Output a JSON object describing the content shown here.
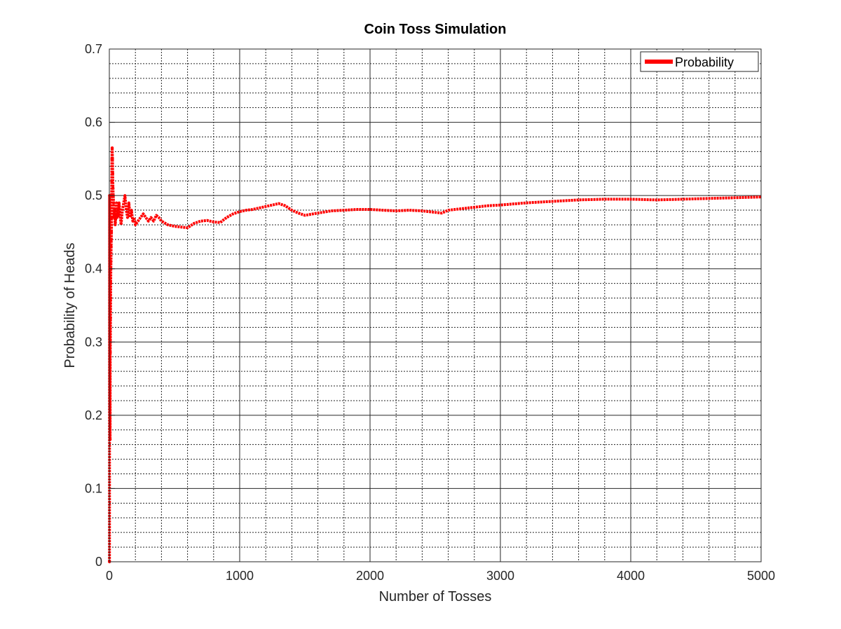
{
  "chart_data": {
    "type": "line",
    "title": "Coin Toss Simulation",
    "xlabel": "Number of Tosses",
    "ylabel": "Probability of Heads",
    "xlim": [
      0,
      5000
    ],
    "ylim": [
      0,
      0.7
    ],
    "x_ticks": [
      0,
      1000,
      2000,
      3000,
      4000,
      5000
    ],
    "x_tick_labels": [
      "0",
      "1000",
      "2000",
      "3000",
      "4000",
      "5000"
    ],
    "y_ticks": [
      0,
      0.1,
      0.2,
      0.3,
      0.4,
      0.5,
      0.6,
      0.7
    ],
    "y_tick_labels": [
      "0",
      "0.1",
      "0.2",
      "0.3",
      "0.4",
      "0.5",
      "0.6",
      "0.7"
    ],
    "grid": true,
    "minor_grid": true,
    "legend": {
      "position": "top-right",
      "entries": [
        "Probability"
      ]
    },
    "series": [
      {
        "name": "Probability",
        "color": "#ff0000",
        "x": [
          1,
          2,
          3,
          4,
          5,
          6,
          7,
          8,
          9,
          10,
          11,
          12,
          13,
          14,
          15,
          16,
          17,
          18,
          19,
          20,
          22,
          24,
          26,
          28,
          30,
          33,
          36,
          40,
          45,
          50,
          55,
          60,
          65,
          70,
          75,
          80,
          85,
          90,
          95,
          100,
          110,
          120,
          130,
          140,
          150,
          160,
          170,
          180,
          190,
          200,
          220,
          240,
          260,
          280,
          300,
          320,
          340,
          360,
          380,
          400,
          450,
          500,
          550,
          600,
          650,
          700,
          750,
          800,
          850,
          900,
          950,
          1000,
          1050,
          1100,
          1150,
          1200,
          1250,
          1300,
          1350,
          1400,
          1450,
          1500,
          1600,
          1700,
          1800,
          1900,
          2000,
          2100,
          2200,
          2300,
          2400,
          2500,
          2550,
          2600,
          2700,
          2800,
          2900,
          3000,
          3200,
          3400,
          3600,
          3800,
          4000,
          4200,
          4400,
          4600,
          4800,
          5000
        ],
        "y": [
          0,
          0.5,
          0.333,
          0.25,
          0.2,
          0.167,
          0.286,
          0.3,
          0.333,
          0.36,
          0.38,
          0.4,
          0.41,
          0.43,
          0.44,
          0.45,
          0.47,
          0.5,
          0.52,
          0.55,
          0.565,
          0.55,
          0.53,
          0.51,
          0.5,
          0.49,
          0.47,
          0.48,
          0.46,
          0.47,
          0.49,
          0.47,
          0.48,
          0.47,
          0.49,
          0.48,
          0.47,
          0.46,
          0.47,
          0.48,
          0.49,
          0.5,
          0.48,
          0.47,
          0.49,
          0.47,
          0.48,
          0.465,
          0.47,
          0.46,
          0.465,
          0.47,
          0.475,
          0.47,
          0.465,
          0.47,
          0.465,
          0.473,
          0.47,
          0.465,
          0.46,
          0.458,
          0.457,
          0.456,
          0.462,
          0.465,
          0.466,
          0.464,
          0.463,
          0.47,
          0.475,
          0.478,
          0.48,
          0.481,
          0.483,
          0.485,
          0.487,
          0.489,
          0.486,
          0.48,
          0.476,
          0.473,
          0.476,
          0.479,
          0.48,
          0.481,
          0.481,
          0.48,
          0.479,
          0.48,
          0.479,
          0.477,
          0.476,
          0.48,
          0.482,
          0.484,
          0.486,
          0.487,
          0.49,
          0.492,
          0.494,
          0.495,
          0.495,
          0.494,
          0.495,
          0.496,
          0.497,
          0.498
        ]
      }
    ]
  }
}
